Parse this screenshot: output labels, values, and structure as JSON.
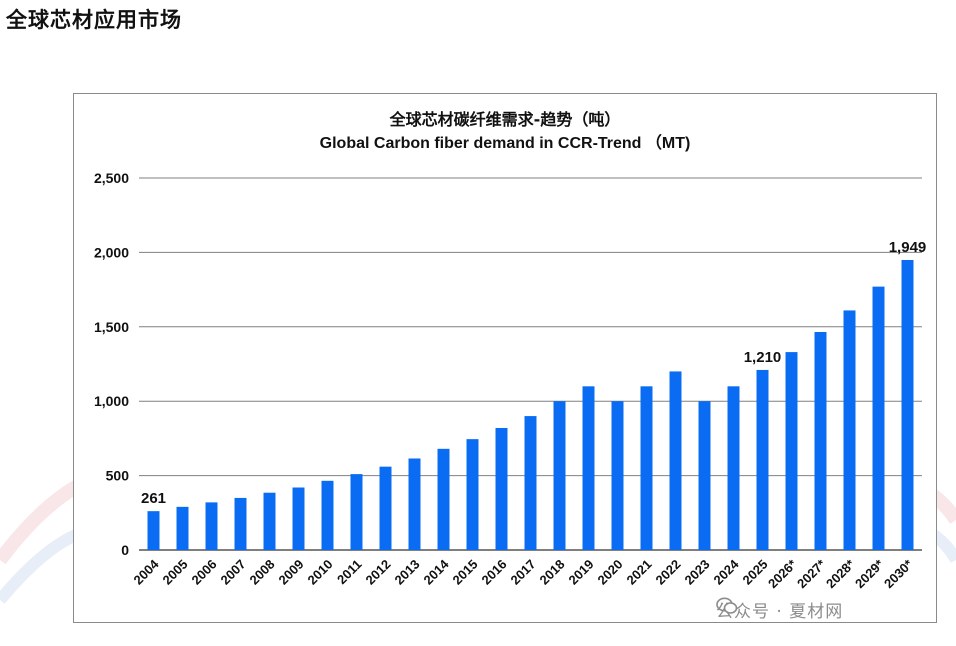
{
  "page": {
    "title": "全球芯材应用市场"
  },
  "chart_data": {
    "type": "bar",
    "title_cn": "全球芯材碳纤维需求-趋势（吨）",
    "title_en": "Global Carbon fiber demand in CCR-Trend （MT)",
    "categories": [
      "2004",
      "2005",
      "2006",
      "2007",
      "2008",
      "2009",
      "2010",
      "2011",
      "2012",
      "2013",
      "2014",
      "2015",
      "2016",
      "2017",
      "2018",
      "2019",
      "2020",
      "2021",
      "2022",
      "2023",
      "2024",
      "2025",
      "2026*",
      "2027*",
      "2028*",
      "2029*",
      "2030*"
    ],
    "values": [
      261,
      290,
      320,
      350,
      385,
      420,
      465,
      510,
      560,
      615,
      680,
      745,
      820,
      900,
      1000,
      1100,
      1000,
      1100,
      1200,
      1000,
      1100,
      1210,
      1330,
      1465,
      1610,
      1770,
      1949
    ],
    "data_labels": [
      {
        "index": 0,
        "text": "261"
      },
      {
        "index": 21,
        "text": "1,210"
      },
      {
        "index": 26,
        "text": "1,949"
      }
    ],
    "yticks": [
      0,
      500,
      1000,
      1500,
      2000,
      2500
    ],
    "ytick_labels": [
      "0",
      "500",
      "1,000",
      "1,500",
      "2,000",
      "2,500"
    ],
    "ylim": [
      0,
      2500
    ],
    "grid": true,
    "bar_color": "#0a6cf2"
  },
  "watermark": {
    "text": "公众号 · 夏材网"
  }
}
